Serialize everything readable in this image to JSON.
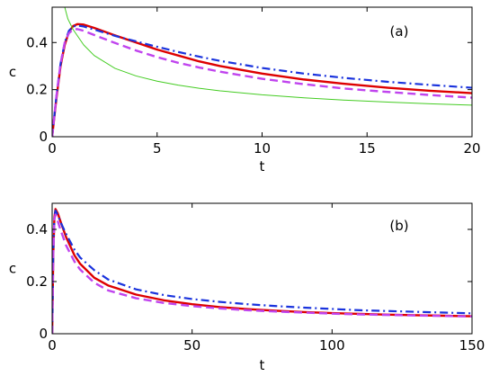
{
  "chart_data": [
    {
      "type": "line",
      "panel_label": "(a)",
      "xlabel": "t",
      "ylabel": "c",
      "xlim": [
        0,
        20
      ],
      "ylim": [
        0,
        0.55
      ],
      "xticks": [
        0,
        5,
        10,
        15,
        20
      ],
      "yticks": [
        0,
        0.2,
        0.4
      ],
      "xtick_labels": [
        "0",
        "5",
        "10",
        "15",
        "20"
      ],
      "ytick_labels": [
        "0",
        "0.2",
        "0.4"
      ],
      "grid": false,
      "series": [
        {
          "color": "#dd0000",
          "style": "solid",
          "width": 2.4,
          "points": [
            [
              0,
              0
            ],
            [
              0.2,
              0.16
            ],
            [
              0.4,
              0.3
            ],
            [
              0.6,
              0.39
            ],
            [
              0.8,
              0.445
            ],
            [
              1.0,
              0.47
            ],
            [
              1.2,
              0.478
            ],
            [
              1.5,
              0.476
            ],
            [
              2,
              0.462
            ],
            [
              3,
              0.43
            ],
            [
              4,
              0.4
            ],
            [
              5,
              0.37
            ],
            [
              6,
              0.345
            ],
            [
              7,
              0.32
            ],
            [
              8,
              0.3
            ],
            [
              10,
              0.268
            ],
            [
              12,
              0.243
            ],
            [
              14,
              0.224
            ],
            [
              16,
              0.208
            ],
            [
              18,
              0.195
            ],
            [
              20,
              0.185
            ]
          ]
        },
        {
          "color": "#1a33dd",
          "style": "dashdot",
          "width": 2.2,
          "points": [
            [
              0,
              0
            ],
            [
              0.2,
              0.17
            ],
            [
              0.4,
              0.31
            ],
            [
              0.6,
              0.4
            ],
            [
              0.8,
              0.45
            ],
            [
              1.0,
              0.468
            ],
            [
              1.2,
              0.472
            ],
            [
              1.5,
              0.468
            ],
            [
              2,
              0.455
            ],
            [
              3,
              0.428
            ],
            [
              4,
              0.405
            ],
            [
              5,
              0.382
            ],
            [
              6,
              0.36
            ],
            [
              7,
              0.34
            ],
            [
              8,
              0.322
            ],
            [
              10,
              0.292
            ],
            [
              12,
              0.268
            ],
            [
              14,
              0.249
            ],
            [
              16,
              0.233
            ],
            [
              18,
              0.22
            ],
            [
              20,
              0.208
            ]
          ]
        },
        {
          "color": "#c044ee",
          "style": "dashed",
          "width": 2.4,
          "points": [
            [
              0,
              0
            ],
            [
              0.2,
              0.17
            ],
            [
              0.4,
              0.31
            ],
            [
              0.6,
              0.4
            ],
            [
              0.8,
              0.44
            ],
            [
              1.0,
              0.455
            ],
            [
              1.2,
              0.457
            ],
            [
              1.5,
              0.45
            ],
            [
              2,
              0.432
            ],
            [
              3,
              0.398
            ],
            [
              4,
              0.366
            ],
            [
              5,
              0.338
            ],
            [
              6,
              0.314
            ],
            [
              7,
              0.294
            ],
            [
              8,
              0.276
            ],
            [
              10,
              0.246
            ],
            [
              12,
              0.223
            ],
            [
              14,
              0.204
            ],
            [
              16,
              0.19
            ],
            [
              18,
              0.177
            ],
            [
              20,
              0.166
            ]
          ]
        },
        {
          "color": "#44cc22",
          "style": "solid",
          "width": 1.0,
          "points": [
            [
              0.6,
              0.55
            ],
            [
              0.75,
              0.5
            ],
            [
              1.0,
              0.455
            ],
            [
              1.5,
              0.39
            ],
            [
              2,
              0.345
            ],
            [
              3,
              0.29
            ],
            [
              4,
              0.258
            ],
            [
              5,
              0.236
            ],
            [
              6,
              0.219
            ],
            [
              7,
              0.206
            ],
            [
              8,
              0.195
            ],
            [
              10,
              0.178
            ],
            [
              12,
              0.165
            ],
            [
              14,
              0.155
            ],
            [
              16,
              0.147
            ],
            [
              18,
              0.14
            ],
            [
              20,
              0.134
            ]
          ]
        }
      ]
    },
    {
      "type": "line",
      "panel_label": "(b)",
      "xlabel": "t",
      "ylabel": "c",
      "xlim": [
        0,
        150
      ],
      "ylim": [
        0,
        0.5
      ],
      "xticks": [
        0,
        50,
        100,
        150
      ],
      "yticks": [
        0,
        0.2,
        0.4
      ],
      "xtick_labels": [
        "0",
        "50",
        "100",
        "150"
      ],
      "ytick_labels": [
        "0",
        "0.2",
        "0.4"
      ],
      "grid": false,
      "series": [
        {
          "color": "#dd0000",
          "style": "solid",
          "width": 2.4,
          "points": [
            [
              0,
              0
            ],
            [
              0.4,
              0.3
            ],
            [
              0.8,
              0.445
            ],
            [
              1.2,
              0.478
            ],
            [
              2,
              0.462
            ],
            [
              3,
              0.43
            ],
            [
              5,
              0.37
            ],
            [
              8,
              0.3
            ],
            [
              10,
              0.268
            ],
            [
              15,
              0.215
            ],
            [
              20,
              0.185
            ],
            [
              30,
              0.15
            ],
            [
              40,
              0.128
            ],
            [
              50,
              0.113
            ],
            [
              60,
              0.102
            ],
            [
              70,
              0.094
            ],
            [
              80,
              0.088
            ],
            [
              90,
              0.083
            ],
            [
              100,
              0.079
            ],
            [
              110,
              0.076
            ],
            [
              120,
              0.073
            ],
            [
              130,
              0.071
            ],
            [
              140,
              0.069
            ],
            [
              150,
              0.067
            ]
          ]
        },
        {
          "color": "#1a33dd",
          "style": "dashdot",
          "width": 2.2,
          "points": [
            [
              0,
              0
            ],
            [
              0.4,
              0.31
            ],
            [
              0.8,
              0.45
            ],
            [
              1.2,
              0.472
            ],
            [
              2,
              0.455
            ],
            [
              3,
              0.428
            ],
            [
              5,
              0.382
            ],
            [
              8,
              0.322
            ],
            [
              10,
              0.292
            ],
            [
              15,
              0.244
            ],
            [
              20,
              0.208
            ],
            [
              30,
              0.17
            ],
            [
              40,
              0.148
            ],
            [
              50,
              0.133
            ],
            [
              60,
              0.122
            ],
            [
              70,
              0.113
            ],
            [
              80,
              0.106
            ],
            [
              90,
              0.1
            ],
            [
              100,
              0.095
            ],
            [
              110,
              0.09
            ],
            [
              120,
              0.087
            ],
            [
              130,
              0.084
            ],
            [
              140,
              0.081
            ],
            [
              150,
              0.078
            ]
          ]
        },
        {
          "color": "#c044ee",
          "style": "dashed",
          "width": 2.4,
          "points": [
            [
              0,
              0
            ],
            [
              0.4,
              0.31
            ],
            [
              0.8,
              0.44
            ],
            [
              1.2,
              0.457
            ],
            [
              2,
              0.432
            ],
            [
              3,
              0.398
            ],
            [
              5,
              0.338
            ],
            [
              8,
              0.276
            ],
            [
              10,
              0.246
            ],
            [
              15,
              0.196
            ],
            [
              20,
              0.166
            ],
            [
              30,
              0.136
            ],
            [
              40,
              0.118
            ],
            [
              50,
              0.106
            ],
            [
              60,
              0.097
            ],
            [
              70,
              0.09
            ],
            [
              80,
              0.085
            ],
            [
              90,
              0.081
            ],
            [
              100,
              0.077
            ],
            [
              110,
              0.074
            ],
            [
              120,
              0.072
            ],
            [
              130,
              0.07
            ],
            [
              140,
              0.068
            ],
            [
              150,
              0.066
            ]
          ]
        }
      ]
    }
  ]
}
